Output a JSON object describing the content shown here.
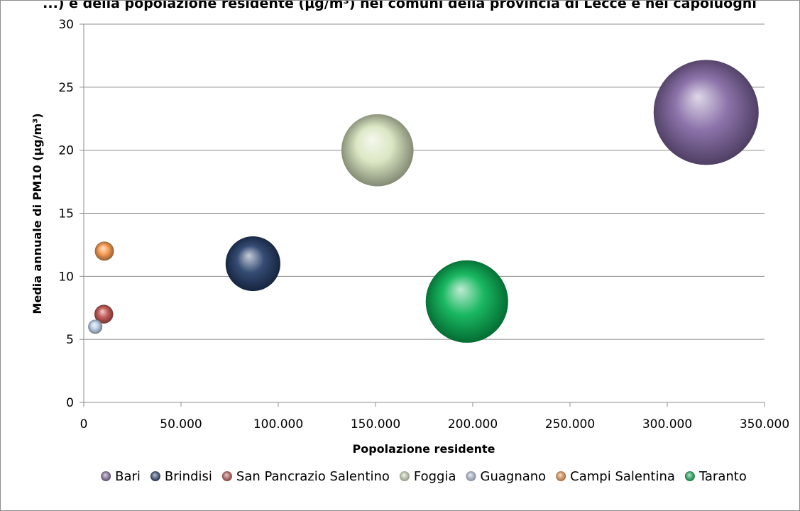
{
  "chart_data": {
    "type": "bubble",
    "title": "...) e della popolazione residente (μg/m³) nei comuni della provincia di Lecce e nei capoluoghi",
    "xlabel": "Popolazione residente",
    "ylabel": "Media annuale di PM10 (µg/m³)",
    "xlim": [
      0,
      350000
    ],
    "ylim": [
      0,
      30
    ],
    "x_ticks": [
      "0",
      "50.000",
      "100.000",
      "150.000",
      "200.000",
      "250.000",
      "300.000",
      "350.000"
    ],
    "y_ticks": [
      "0",
      "5",
      "10",
      "15",
      "20",
      "25",
      "30"
    ],
    "grid": "horizontal",
    "legend_position": "bottom",
    "series": [
      {
        "name": "Bari",
        "x": 320000,
        "y": 23,
        "size": 320000,
        "color": "#8064a2"
      },
      {
        "name": "Brindisi",
        "x": 87000,
        "y": 11,
        "size": 87000,
        "color": "#1f3864"
      },
      {
        "name": "San Pancrazio Salentino",
        "x": 10300,
        "y": 7,
        "size": 10300,
        "color": "#c0504d"
      },
      {
        "name": "Foggia",
        "x": 151000,
        "y": 20,
        "size": 151000,
        "color": "#d7e4bd"
      },
      {
        "name": "Guagnano",
        "x": 5900,
        "y": 6,
        "size": 5900,
        "color": "#b9cde5"
      },
      {
        "name": "Campi Salentina",
        "x": 10600,
        "y": 12,
        "size": 10600,
        "color": "#f79646"
      },
      {
        "name": "Taranto",
        "x": 197000,
        "y": 8,
        "size": 197000,
        "color": "#00b050"
      }
    ]
  }
}
